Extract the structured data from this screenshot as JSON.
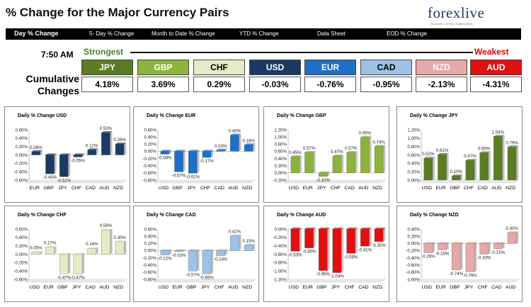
{
  "header": {
    "title": "% Change for the Major Currency Pairs",
    "logo_text": "forexlive",
    "logo_subtext": "Exclusive Currency Trading News"
  },
  "nav": {
    "items": [
      "Day % Change",
      "5- Day % Change",
      "Month to Date % Change",
      "YTD % Change",
      "Data Sheet",
      "EOD % Change"
    ],
    "active": "Day % Change"
  },
  "summary": {
    "time": "7:50 AM",
    "strongest_label": "Strongest",
    "weakest_label": "Weakest",
    "cumulative_label_1": "Cumulative",
    "cumulative_label_2": "Changes",
    "currencies": [
      {
        "code": "JPY",
        "value": "4.18%",
        "bg": "#5b7d22",
        "fg": "#ffffff"
      },
      {
        "code": "GBP",
        "value": "3.69%",
        "bg": "#8cb43c",
        "fg": "#ffffff"
      },
      {
        "code": "CHF",
        "value": "0.29%",
        "bg": "#e3ecc4",
        "fg": "#000000"
      },
      {
        "code": "USD",
        "value": "-0.03%",
        "bg": "#1b3a63",
        "fg": "#ffffff"
      },
      {
        "code": "EUR",
        "value": "-0.76%",
        "bg": "#1f6fc6",
        "fg": "#ffffff"
      },
      {
        "code": "CAD",
        "value": "-0.95%",
        "bg": "#9cc2e8",
        "fg": "#000000"
      },
      {
        "code": "NZD",
        "value": "-2.13%",
        "bg": "#e6a8a8",
        "fg": "#ffffff"
      },
      {
        "code": "AUD",
        "value": "-4.31%",
        "bg": "#e01010",
        "fg": "#ffffff"
      }
    ]
  },
  "chart_data": [
    {
      "type": "bar",
      "title": "Daily % Change USD",
      "categories": [
        "EUR",
        "GBP",
        "JPY",
        "CHF",
        "CAD",
        "AUD",
        "NZD"
      ],
      "values": [
        0.08,
        -0.45,
        -0.52,
        -0.05,
        0.12,
        0.53,
        0.26
      ],
      "labels": [
        "0.08%",
        "-0.45%",
        "-0.52%",
        "-0.05%",
        "0.12%",
        "0.53%",
        "0.26%"
      ],
      "ylim": [
        -0.6,
        0.6
      ],
      "yticks": [
        "0.60%",
        "0.40%",
        "0.20%",
        "0.00%",
        "-0.20%",
        "-0.40%",
        "-0.60%"
      ],
      "color": "#1b3a63"
    },
    {
      "type": "bar",
      "title": "Daily % Change EUR",
      "categories": [
        "USD",
        "GBP",
        "JPY",
        "CHF",
        "CAD",
        "AUD",
        "NZD"
      ],
      "values": [
        -0.08,
        -0.57,
        -0.61,
        -0.17,
        0.03,
        0.45,
        0.18
      ],
      "labels": [
        "-0.08%",
        "-0.57%",
        "-0.61%",
        "-0.17%",
        "0.03%",
        "0.45%",
        "0.18%"
      ],
      "ylim": [
        -0.8,
        0.6
      ],
      "yticks": [
        "0.60%",
        "0.40%",
        "0.20%",
        "0.00%",
        "-0.20%",
        "-0.40%",
        "-0.60%",
        "-0.80%"
      ],
      "color": "#1f6fc6"
    },
    {
      "type": "bar",
      "title": "Daily % Change GBP",
      "categories": [
        "USD",
        "EUR",
        "JPY",
        "CHF",
        "CAD",
        "AUD",
        "NZD"
      ],
      "values": [
        0.45,
        0.57,
        -0.1,
        0.47,
        0.57,
        0.99,
        0.74
      ],
      "labels": [
        "0.45%",
        "0.57%",
        "-0.10%",
        "0.47%",
        "0.57%",
        "0.99%",
        "0.74%"
      ],
      "ylim": [
        -0.2,
        1.2
      ],
      "yticks": [
        "1.20%",
        "1.00%",
        "0.80%",
        "0.60%",
        "0.40%",
        "0.20%",
        "0.00%",
        "-0.20%"
      ],
      "color": "#8cb43c"
    },
    {
      "type": "bar",
      "title": "Daily % Change JPY",
      "categories": [
        "USD",
        "EUR",
        "GBP",
        "CHF",
        "CAD",
        "AUD",
        "NZD"
      ],
      "values": [
        0.52,
        0.61,
        0.1,
        0.47,
        0.65,
        1.04,
        0.79
      ],
      "labels": [
        "0.52%",
        "0.61%",
        "0.10%",
        "0.47%",
        "0.65%",
        "1.04%",
        "0.79%"
      ],
      "ylim": [
        0,
        1.2
      ],
      "yticks": [
        "1.20%",
        "1.00%",
        "0.80%",
        "0.60%",
        "0.40%",
        "0.20%",
        "0.00%"
      ],
      "color": "#5b7d22"
    },
    {
      "type": "bar",
      "title": "Daily % Change CHF",
      "categories": [
        "USD",
        "EUR",
        "GBP",
        "JPY",
        "CAD",
        "AUD",
        "NZD"
      ],
      "values": [
        0.05,
        0.17,
        -0.47,
        -0.47,
        0.14,
        0.58,
        0.3
      ],
      "labels": [
        "0.05%",
        "0.17%",
        "-0.47%",
        "-0.47%",
        "0.14%",
        "0.58%",
        "0.30%"
      ],
      "ylim": [
        -0.6,
        0.6
      ],
      "yticks": [
        "0.60%",
        "0.40%",
        "0.20%",
        "0.00%",
        "-0.20%",
        "-0.40%",
        "-0.60%"
      ],
      "color": "#e3ecc4"
    },
    {
      "type": "bar",
      "title": "Daily % Change CAD",
      "categories": [
        "USD",
        "EUR",
        "GBP",
        "JPY",
        "CHF",
        "AUD",
        "NZD"
      ],
      "values": [
        -0.12,
        -0.03,
        -0.57,
        -0.65,
        -0.14,
        0.41,
        0.15
      ],
      "labels": [
        "-0.12%",
        "-0.03%",
        "-0.57%",
        "-0.65%",
        "-0.14%",
        "0.41%",
        "0.15%"
      ],
      "ylim": [
        -0.8,
        0.6
      ],
      "yticks": [
        "0.60%",
        "0.40%",
        "0.20%",
        "0.00%",
        "-0.20%",
        "-0.40%",
        "-0.60%",
        "-0.80%"
      ],
      "color": "#9cc2e8"
    },
    {
      "type": "bar",
      "title": "Daily % Change AUD",
      "categories": [
        "USD",
        "EUR",
        "GBP",
        "JPY",
        "CHF",
        "CAD",
        "NZD"
      ],
      "values": [
        -0.53,
        -0.45,
        -0.99,
        -1.04,
        -0.58,
        -0.41,
        -0.3
      ],
      "labels": [
        "-0.53%",
        "-0.45%",
        "-0.99%",
        "-1.04%",
        "-0.58%",
        "-0.41%",
        "-0.30%"
      ],
      "ylim": [
        -1.2,
        0
      ],
      "yticks": [
        "0.00%",
        "-0.20%",
        "-0.40%",
        "-0.60%",
        "-0.80%",
        "-1.00%",
        "-1.20%"
      ],
      "color": "#e01010"
    },
    {
      "type": "bar",
      "title": "Daily % Change NZD",
      "categories": [
        "USD",
        "EUR",
        "GBP",
        "JPY",
        "CHF",
        "CAD",
        "AUD"
      ],
      "values": [
        -0.26,
        -0.18,
        -0.74,
        -0.79,
        -0.3,
        -0.15,
        0.3
      ],
      "labels": [
        "-0.26%",
        "-0.18%",
        "-0.74%",
        "-0.79%",
        "-0.30%",
        "-0.15%",
        "0.30%"
      ],
      "ylim": [
        -1.0,
        0.4
      ],
      "yticks": [
        "0.40%",
        "0.20%",
        "0.00%",
        "-0.20%",
        "-0.40%",
        "-0.60%",
        "-0.80%",
        "-1.00%"
      ],
      "color": "#e6a8a8"
    }
  ]
}
